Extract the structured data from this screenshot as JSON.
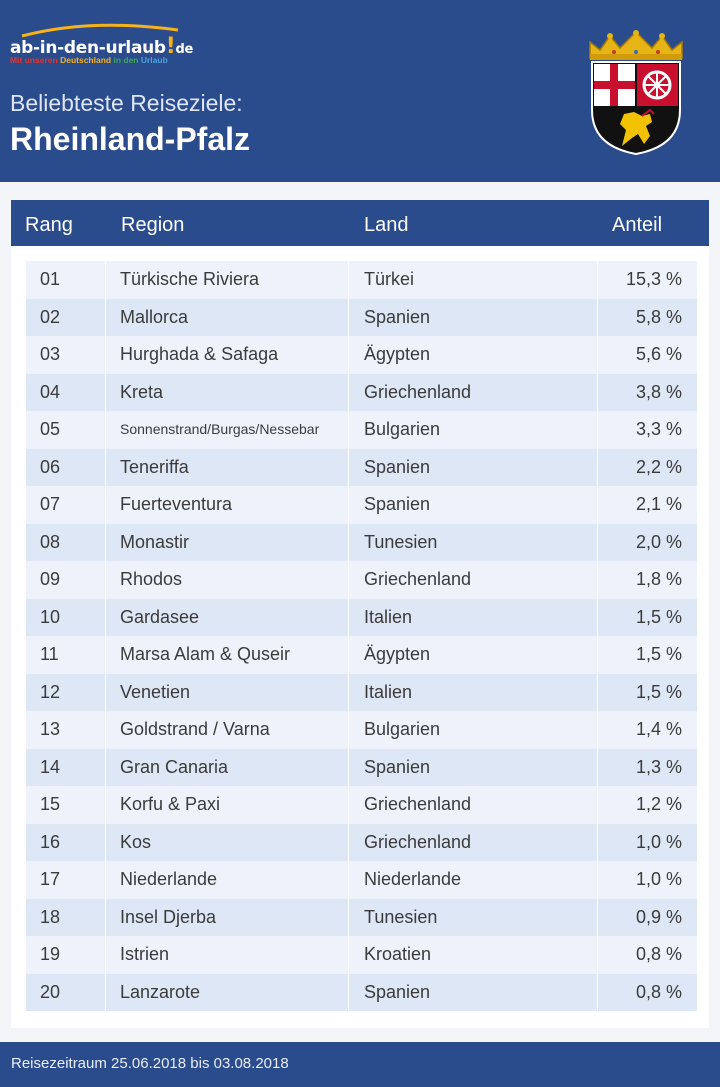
{
  "brand": {
    "name": "ab-in-den-urlaub",
    "excl": "!",
    "tld": "de",
    "tagline": [
      "Mit ",
      "unseren ",
      "Deutschland ",
      "in den ",
      "Urlaub"
    ],
    "tagline_colors": [
      "#e3342f",
      "#e3342f",
      "#f5b21a",
      "#3aa655",
      "#4aa3df"
    ]
  },
  "header": {
    "subtitle": "Beliebteste Reiseziele:",
    "title": "Rheinland-Pfalz"
  },
  "table": {
    "headers": {
      "rang": "Rang",
      "region": "Region",
      "land": "Land",
      "anteil": "Anteil"
    },
    "rows": [
      {
        "rang": "01",
        "region": "Türkische Riviera",
        "land": "Türkei",
        "anteil": "15,3 %"
      },
      {
        "rang": "02",
        "region": "Mallorca",
        "land": "Spanien",
        "anteil": "5,8 %"
      },
      {
        "rang": "03",
        "region": "Hurghada & Safaga",
        "land": "Ägypten",
        "anteil": "5,6 %"
      },
      {
        "rang": "04",
        "region": "Kreta",
        "land": "Griechenland",
        "anteil": "3,8 %"
      },
      {
        "rang": "05",
        "region": "Sonnenstrand/Burgas/Nessebar",
        "land": "Bulgarien",
        "anteil": "3,3 %"
      },
      {
        "rang": "06",
        "region": "Teneriffa",
        "land": "Spanien",
        "anteil": "2,2 %"
      },
      {
        "rang": "07",
        "region": "Fuerteventura",
        "land": "Spanien",
        "anteil": "2,1 %"
      },
      {
        "rang": "08",
        "region": "Monastir",
        "land": "Tunesien",
        "anteil": "2,0 %"
      },
      {
        "rang": "09",
        "region": "Rhodos",
        "land": "Griechenland",
        "anteil": "1,8 %"
      },
      {
        "rang": "10",
        "region": "Gardasee",
        "land": "Italien",
        "anteil": "1,5 %"
      },
      {
        "rang": "11",
        "region": "Marsa Alam & Quseir",
        "land": "Ägypten",
        "anteil": "1,5 %"
      },
      {
        "rang": "12",
        "region": "Venetien",
        "land": "Italien",
        "anteil": "1,5 %"
      },
      {
        "rang": "13",
        "region": "Goldstrand / Varna",
        "land": "Bulgarien",
        "anteil": "1,4 %"
      },
      {
        "rang": "14",
        "region": "Gran Canaria",
        "land": "Spanien",
        "anteil": "1,3 %"
      },
      {
        "rang": "15",
        "region": "Korfu & Paxi",
        "land": "Griechenland",
        "anteil": "1,2 %"
      },
      {
        "rang": "16",
        "region": "Kos",
        "land": "Griechenland",
        "anteil": "1,0 %"
      },
      {
        "rang": "17",
        "region": "Niederlande",
        "land": "Niederlande",
        "anteil": "1,0 %"
      },
      {
        "rang": "18",
        "region": "Insel Djerba",
        "land": "Tunesien",
        "anteil": "0,9 %"
      },
      {
        "rang": "19",
        "region": "Istrien",
        "land": "Kroatien",
        "anteil": "0,8 %"
      },
      {
        "rang": "20",
        "region": "Lanzarote",
        "land": "Spanien",
        "anteil": "0,8 %"
      }
    ]
  },
  "footer": {
    "text": "Reisezeitraum 25.06.2018 bis 03.08.2018"
  },
  "colors": {
    "primary": "#2a4b8c",
    "row_light": "#eef3fb",
    "row_dark": "#dde7f5",
    "accent": "#f5b21a"
  }
}
